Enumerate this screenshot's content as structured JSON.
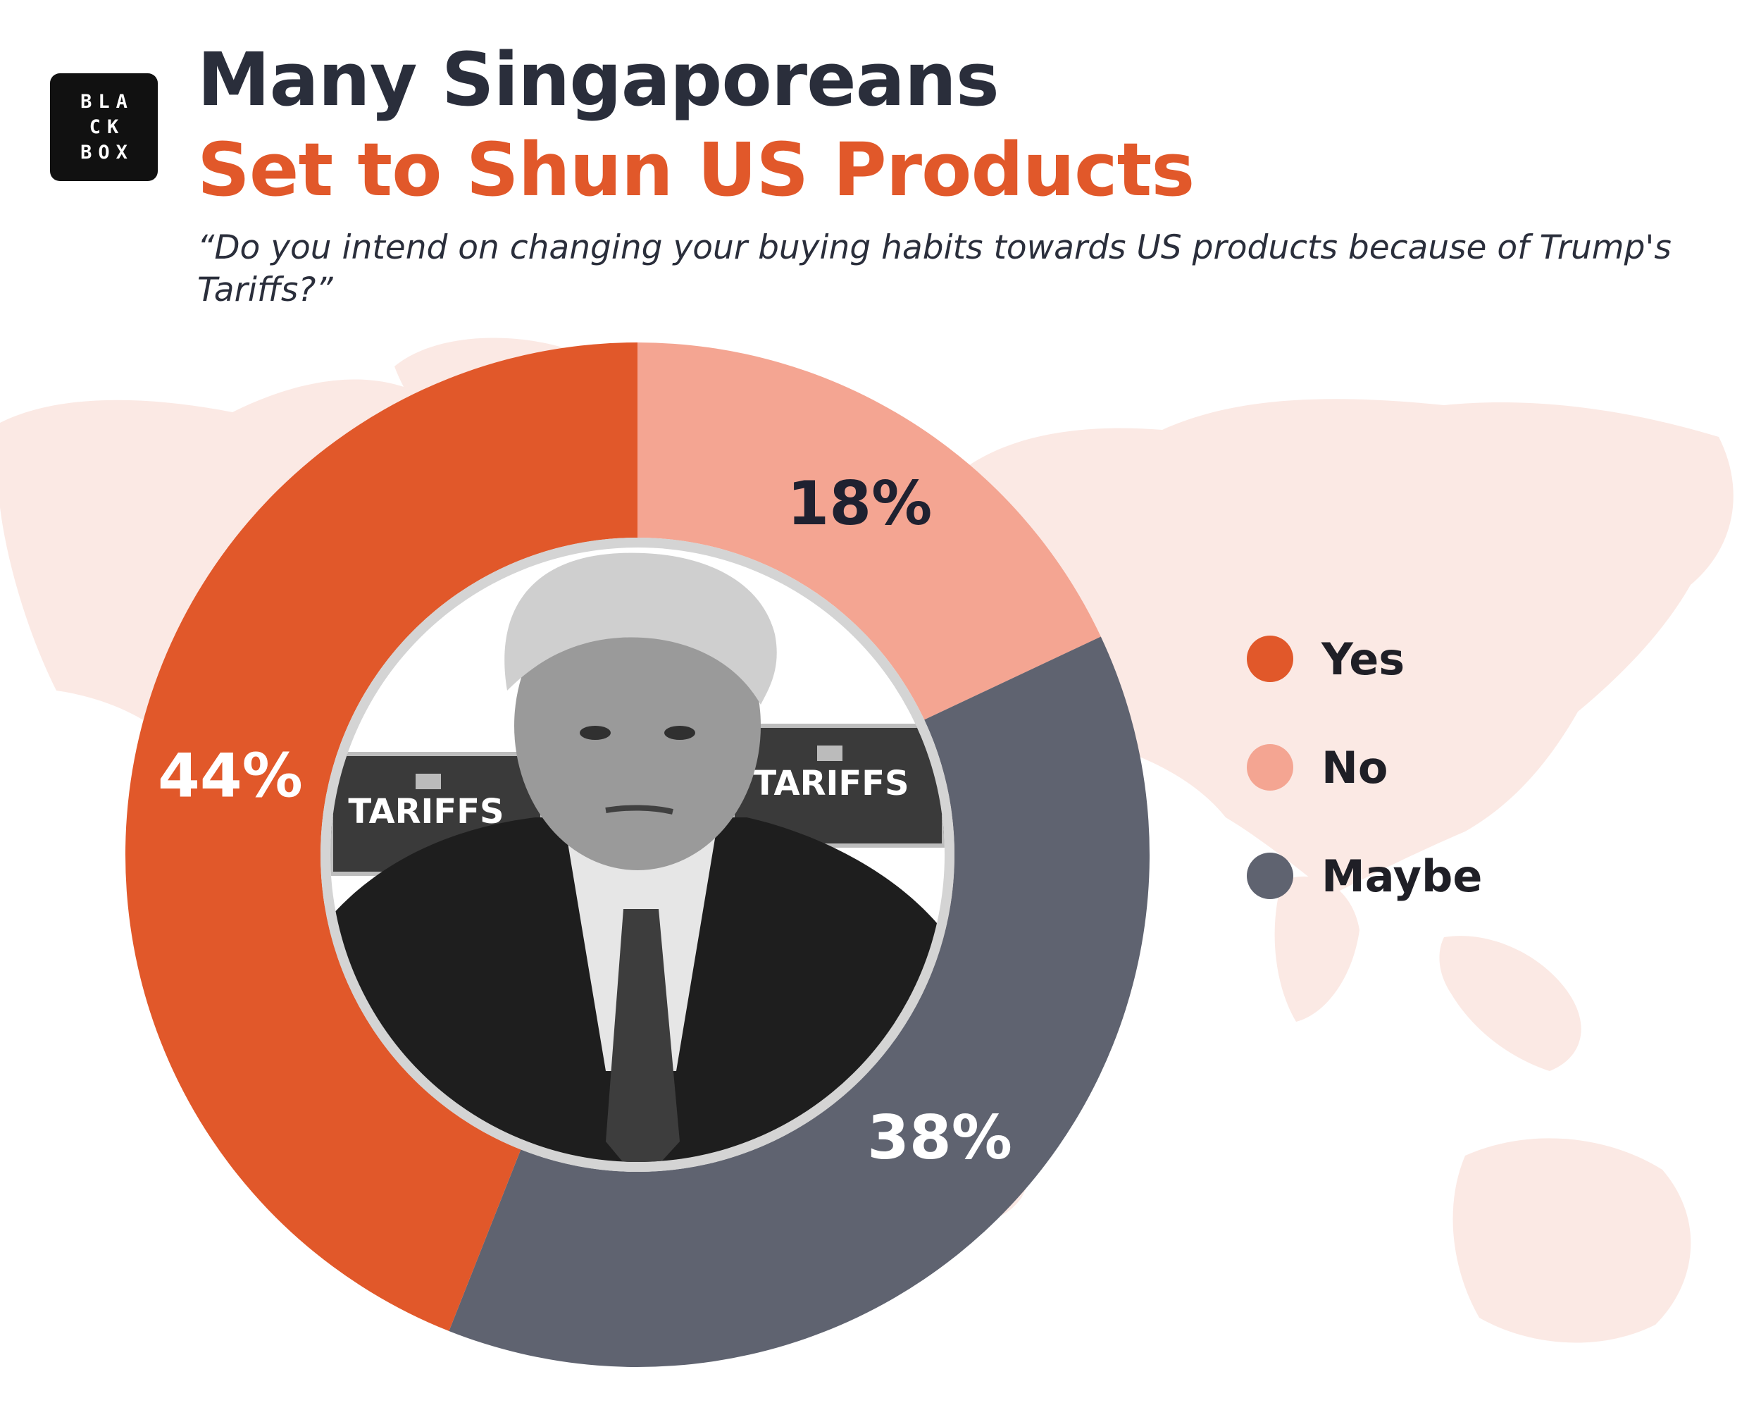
{
  "logo": {
    "lines": [
      "BLA",
      "CK",
      "BOX"
    ]
  },
  "header": {
    "title_line1": "Many Singaporeans",
    "title_line2": "Set to Shun US Products",
    "subtitle": "“Do you intend on changing your buying habits towards US products because of Trump's Tariffs?”"
  },
  "center_photo": {
    "sign_left": "TARIFFS",
    "sign_right": "TARIFFS"
  },
  "colors": {
    "yes": "#e1582a",
    "no": "#f4a592",
    "maybe": "#5f6370",
    "map": "#fbe9e4",
    "title_dark": "#2a2e3b",
    "title_accent": "#e1582a"
  },
  "chart_data": {
    "type": "pie",
    "categories": [
      "Yes",
      "No",
      "Maybe"
    ],
    "values": [
      44,
      18,
      38
    ],
    "data_labels": [
      "44%",
      "18%",
      "38%"
    ],
    "title": "Many Singaporeans Set to Shun US Products",
    "subtitle": "“Do you intend on changing your buying habits towards US products because of Trump's Tariffs?”",
    "donut": true,
    "legend_position": "right"
  }
}
